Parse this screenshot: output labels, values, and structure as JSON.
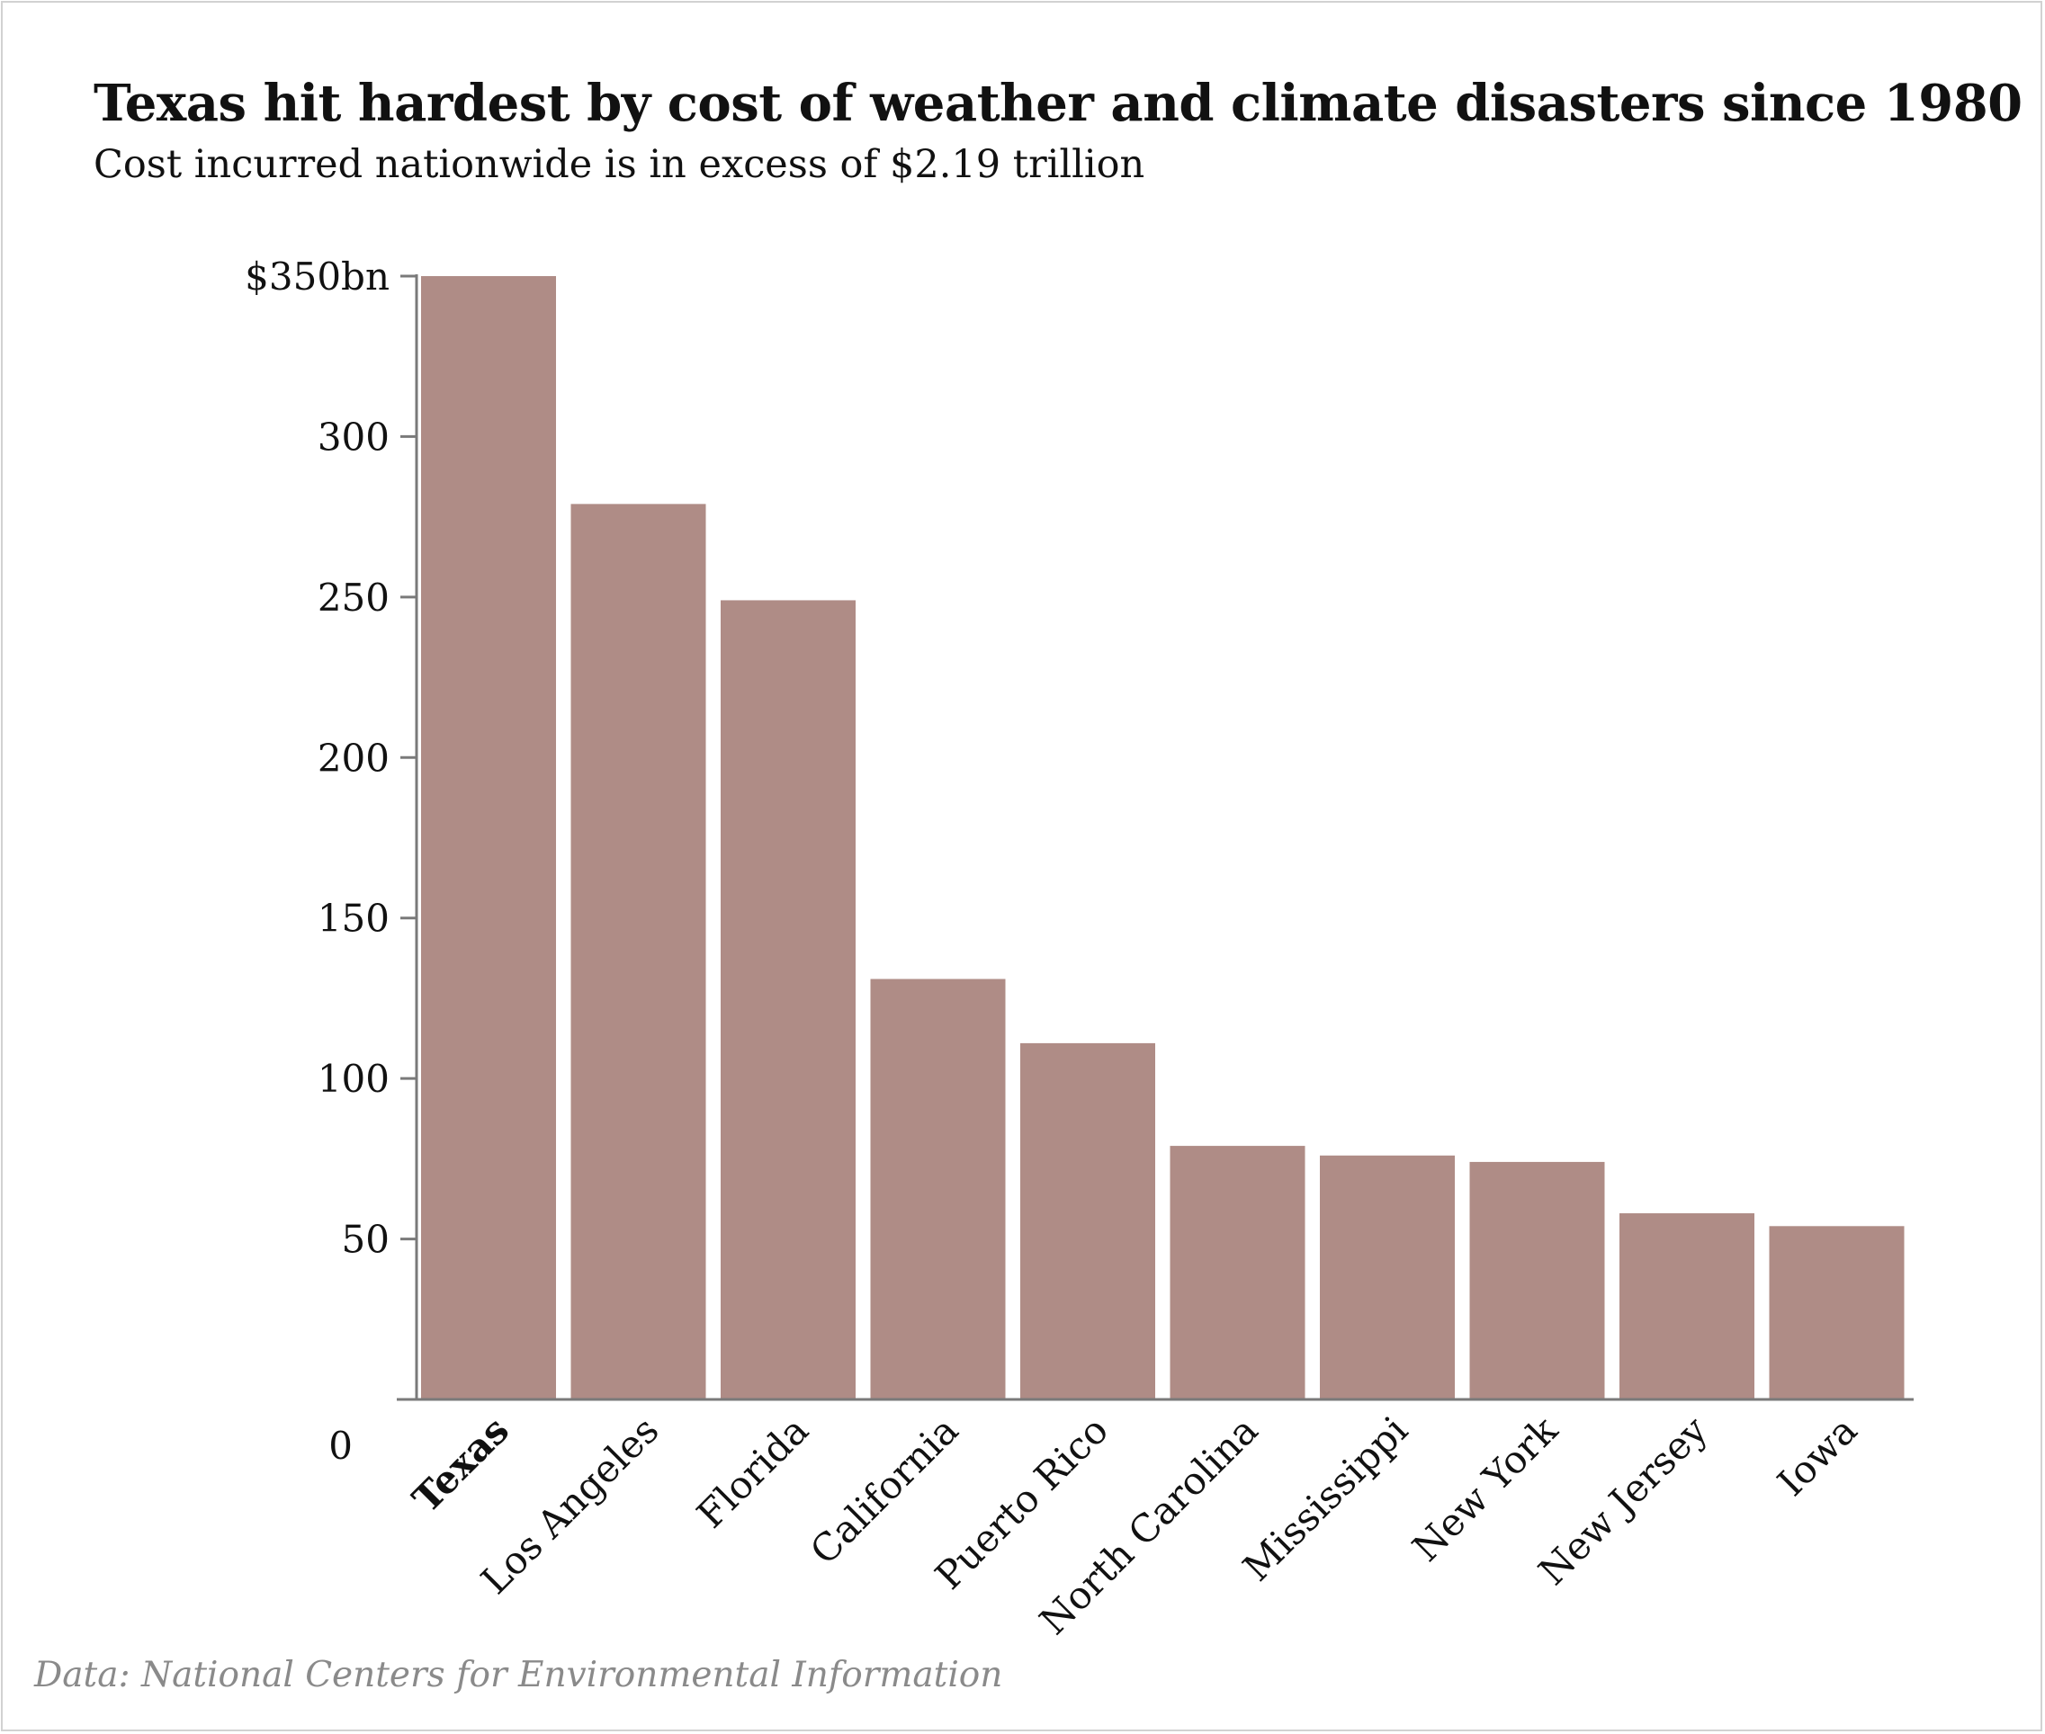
{
  "chart_data": {
    "type": "bar",
    "title": "Texas hit hardest by cost of weather and climate disasters since 1980",
    "subtitle": "Cost incurred nationwide is in excess of $2.19 trillion",
    "source": "Data: National Centers for Environmental Information",
    "categories": [
      "Texas",
      "Los Angeles",
      "Florida",
      "California",
      "Puerto Rico",
      "North Carolina",
      "Mississippi",
      "New York",
      "New Jersey",
      "Iowa"
    ],
    "highlight_category": "Texas",
    "values": [
      350,
      279,
      249,
      131,
      111,
      79,
      76,
      74,
      58,
      54
    ],
    "unit": "$bn",
    "ylim": [
      0,
      350
    ],
    "yticks": [
      {
        "value": 0,
        "label": "0"
      },
      {
        "value": 50,
        "label": "50"
      },
      {
        "value": 100,
        "label": "100"
      },
      {
        "value": 150,
        "label": "150"
      },
      {
        "value": 200,
        "label": "200"
      },
      {
        "value": 250,
        "label": "250"
      },
      {
        "value": 300,
        "label": "300"
      },
      {
        "value": 350,
        "label": "$350bn"
      }
    ],
    "xlabel": "",
    "ylabel": "",
    "grid": false,
    "colors": {
      "bar": "#af8c86",
      "axis": "#7a7a7a",
      "text": "#111111",
      "source_text": "#8a8a8a"
    }
  }
}
